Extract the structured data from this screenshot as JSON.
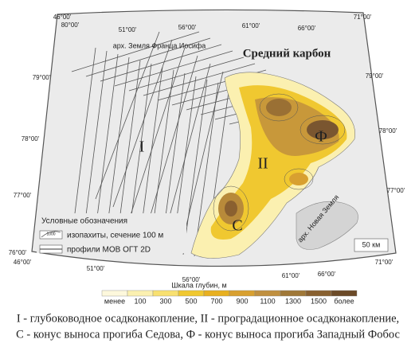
{
  "title": "Средний карбон",
  "places": {
    "franz_josef": "арх. Земля Франца Иосифа",
    "novaya_zemlya": "арх. Новая Земля"
  },
  "zones": [
    "I",
    "II",
    "C",
    "Ф"
  ],
  "coords": {
    "top": [
      "46°00'",
      "51°00'",
      "56°00'",
      "61°00'",
      "66°00'",
      "71°00'"
    ],
    "bottom": [
      "46°00'",
      "51°00'",
      "56°00'",
      "61°00'",
      "66°00'",
      "71°00'"
    ],
    "left": [
      "80°00'",
      "79°00'",
      "78°00'",
      "77°00'",
      "76°00'"
    ],
    "right": [
      "79°00'",
      "78°00'",
      "77°00'"
    ]
  },
  "legend": {
    "title": "Условные обозначения",
    "isopach_sample": "1000",
    "items": [
      "изопахиты, сечение 100 м",
      "профили МОВ ОГТ 2D"
    ]
  },
  "scale_bar": "50 км",
  "depth_scale": {
    "title": "Шкала глубин, м",
    "labels": [
      "менее",
      "100",
      "300",
      "500",
      "700",
      "900",
      "1100",
      "1300",
      "1500",
      "более"
    ]
  },
  "caption": [
    "I - глубоководное осадконакопление, II - проградационное осадконакопление,",
    "С - конус выноса прогиба Седова, Ф - конус выноса прогиба Западный Фобос"
  ]
}
